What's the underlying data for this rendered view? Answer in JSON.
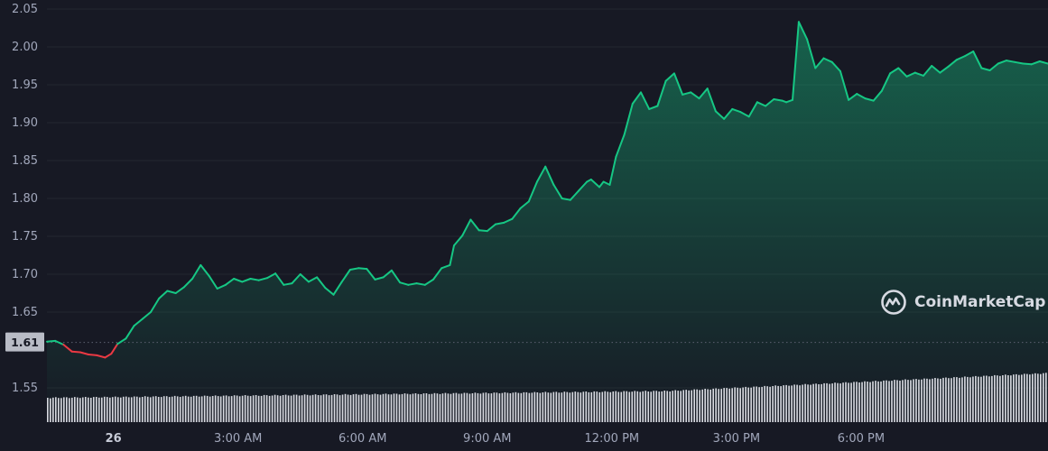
{
  "colors": {
    "background": "#171924",
    "up": "#16c784",
    "down": "#ea3943",
    "volume": "#d7d9e0",
    "badge_bg": "#b9bcc6",
    "badge_text": "#171924"
  },
  "watermark": {
    "brand": "CoinMarketCap",
    "icon": "coinmarketcap-logo-icon"
  },
  "chart_data": {
    "type": "area",
    "title": "",
    "xlabel": "",
    "ylabel": "",
    "ylim": [
      1.52,
      2.05
    ],
    "yticks": [
      "1.55",
      "1.65",
      "1.70",
      "1.75",
      "1.80",
      "1.85",
      "1.90",
      "1.95",
      "2.00",
      "2.05"
    ],
    "ytick_values": [
      1.55,
      1.65,
      1.7,
      1.75,
      1.8,
      1.85,
      1.9,
      1.95,
      2.0,
      2.05
    ],
    "xlim": [
      -1.6,
      22.5
    ],
    "xticks": [
      {
        "h": 0,
        "label": "26"
      },
      {
        "h": 3,
        "label": "3:00 AM"
      },
      {
        "h": 6,
        "label": "6:00 AM"
      },
      {
        "h": 9,
        "label": "9:00 AM"
      },
      {
        "h": 12,
        "label": "12:00 PM"
      },
      {
        "h": 15,
        "label": "3:00 PM"
      },
      {
        "h": 18,
        "label": "6:00 PM"
      }
    ],
    "reference_price": 1.61,
    "reference_label": "1.61",
    "grid": true,
    "series": [
      {
        "x": [
          -1.6,
          -1.4,
          -1.2,
          -1.0,
          -0.8,
          -0.6,
          -0.4,
          -0.2,
          -0.05,
          0.1,
          0.3,
          0.5,
          0.7,
          0.9,
          1.1,
          1.3,
          1.5,
          1.7,
          1.9,
          2.1,
          2.3,
          2.5,
          2.7,
          2.9,
          3.1,
          3.3,
          3.5,
          3.7,
          3.9,
          4.1,
          4.3,
          4.5,
          4.7,
          4.9,
          5.1,
          5.3,
          5.5,
          5.7,
          5.9,
          6.1,
          6.3,
          6.5,
          6.7,
          6.9,
          7.1,
          7.3,
          7.5,
          7.7,
          7.9,
          8.1,
          8.2,
          8.4,
          8.6,
          8.8,
          9.0,
          9.2,
          9.4,
          9.6,
          9.8,
          10.0,
          10.2,
          10.4,
          10.6,
          10.8,
          11.0,
          11.2,
          11.4,
          11.5,
          11.7,
          11.8,
          11.95,
          12.1,
          12.3,
          12.5,
          12.7,
          12.9,
          13.1,
          13.3,
          13.5,
          13.7,
          13.9,
          14.1,
          14.3,
          14.5,
          14.7,
          14.9,
          15.1,
          15.3,
          15.5,
          15.7,
          15.9,
          16.1,
          16.2,
          16.35,
          16.5,
          16.7,
          16.9,
          17.1,
          17.3,
          17.5,
          17.7,
          17.9,
          18.1,
          18.3,
          18.5,
          18.7,
          18.9,
          19.1,
          19.3,
          19.5,
          19.7,
          19.9,
          20.1,
          20.3,
          20.5,
          20.7,
          20.9,
          21.1,
          21.3,
          21.5,
          21.7,
          21.9,
          22.1,
          22.3,
          22.5
        ],
        "y": [
          1.611,
          1.612,
          1.607,
          1.598,
          1.597,
          1.594,
          1.593,
          1.59,
          1.595,
          1.608,
          1.615,
          1.632,
          1.641,
          1.65,
          1.668,
          1.678,
          1.675,
          1.683,
          1.694,
          1.712,
          1.698,
          1.681,
          1.686,
          1.694,
          1.69,
          1.694,
          1.692,
          1.695,
          1.701,
          1.686,
          1.688,
          1.7,
          1.69,
          1.696,
          1.682,
          1.673,
          1.69,
          1.706,
          1.708,
          1.707,
          1.693,
          1.696,
          1.705,
          1.689,
          1.686,
          1.688,
          1.686,
          1.693,
          1.708,
          1.712,
          1.738,
          1.751,
          1.772,
          1.758,
          1.757,
          1.766,
          1.768,
          1.773,
          1.787,
          1.796,
          1.822,
          1.842,
          1.818,
          1.8,
          1.798,
          1.81,
          1.822,
          1.825,
          1.815,
          1.822,
          1.818,
          1.855,
          1.884,
          1.925,
          1.94,
          1.918,
          1.922,
          1.955,
          1.965,
          1.937,
          1.94,
          1.932,
          1.945,
          1.915,
          1.905,
          1.918,
          1.914,
          1.908,
          1.927,
          1.922,
          1.931,
          1.929,
          1.927,
          1.93,
          2.033,
          2.01,
          1.972,
          1.985,
          1.98,
          1.968,
          1.93,
          1.938,
          1.932,
          1.929,
          1.942,
          1.965,
          1.972,
          1.961,
          1.966,
          1.962,
          1.975,
          1.966,
          1.974,
          1.983,
          1.988,
          1.994,
          1.972,
          1.969,
          1.978,
          1.982,
          1.98,
          1.978,
          1.977,
          1.981,
          1.978
        ]
      }
    ]
  }
}
